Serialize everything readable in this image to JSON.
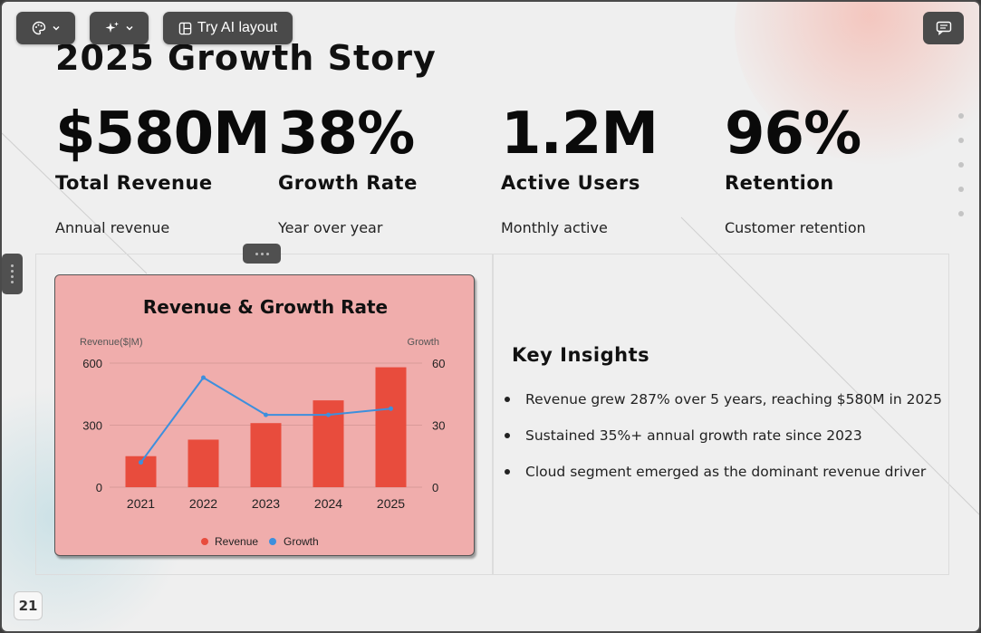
{
  "toolbar": {
    "theme_icon": "palette-icon",
    "ai_icon": "sparkles-icon",
    "layout_icon": "layout-icon",
    "try_ai_layout_label": "Try AI layout",
    "comment_icon": "comment-icon"
  },
  "slide": {
    "title": "2025 Growth Story",
    "page_number": "21",
    "stats": [
      {
        "value": "$580M",
        "label": "Total Revenue",
        "sub": "Annual revenue"
      },
      {
        "value": "38%",
        "label": "Growth Rate",
        "sub": "Year over year"
      },
      {
        "value": "1.2M",
        "label": "Active Users",
        "sub": "Monthly active"
      },
      {
        "value": "96%",
        "label": "Retention",
        "sub": "Customer retention"
      }
    ],
    "insights": {
      "title": "Key Insights",
      "items": [
        "Revenue grew 287% over 5 years, reaching $580M in 2025",
        "Sustained 35%+ annual growth rate since 2023",
        "Cloud segment emerged as the dominant revenue driver"
      ]
    }
  },
  "colors": {
    "bar": "#e84c3d",
    "line": "#3d8fdd",
    "card_bg": "#f0adac"
  },
  "chart_data": {
    "type": "bar",
    "title": "Revenue & Growth Rate",
    "xlabel": "",
    "ylabel": "Revenue($|M)",
    "y2label": "Growth",
    "categories": [
      "2021",
      "2022",
      "2023",
      "2024",
      "2025"
    ],
    "ylim": [
      0,
      600
    ],
    "y2lim": [
      0,
      60
    ],
    "yticks": [
      0,
      300,
      600
    ],
    "y2ticks": [
      0,
      30,
      60
    ],
    "grid": true,
    "legend_position": "bottom",
    "series": [
      {
        "name": "Revenue",
        "type": "bar",
        "axis": "left",
        "values": [
          150,
          230,
          310,
          420,
          580
        ]
      },
      {
        "name": "Growth",
        "type": "line",
        "axis": "right",
        "values": [
          12,
          53,
          35,
          35,
          38
        ]
      }
    ]
  }
}
